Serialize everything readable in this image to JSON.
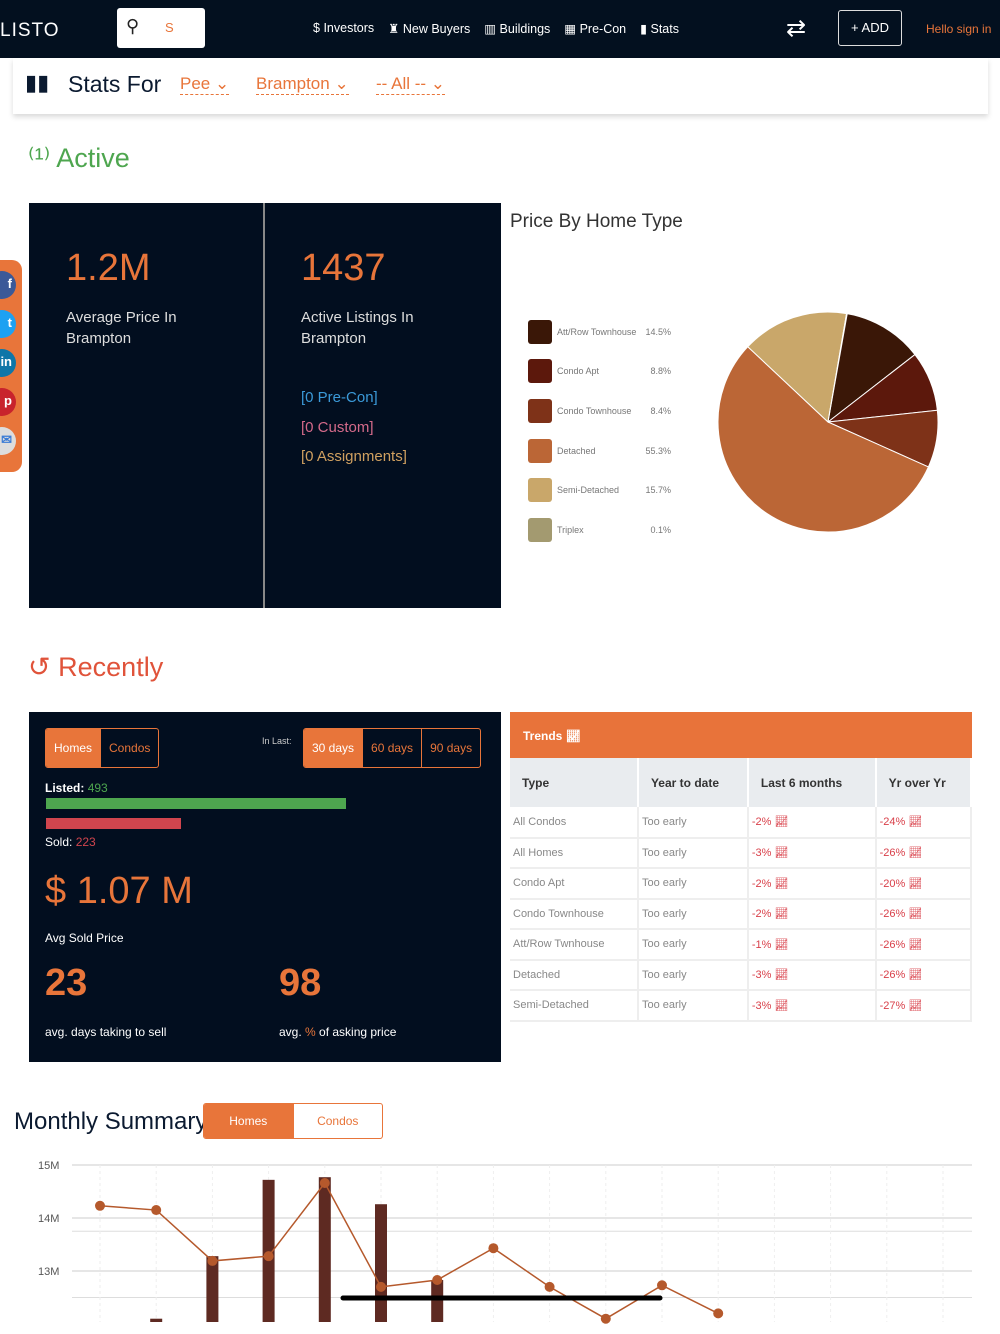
{
  "nav": {
    "logo": "LISTO",
    "search_placeholder": "S",
    "links": [
      {
        "icon": "dollar-icon",
        "glyph": "$",
        "label": "Investors"
      },
      {
        "icon": "person-icon",
        "glyph": "♜",
        "label": "New Buyers"
      },
      {
        "icon": "building-icon",
        "glyph": "▥",
        "label": "Buildings"
      },
      {
        "icon": "city-icon",
        "glyph": "▦",
        "label": "Pre-Con"
      },
      {
        "icon": "stats-icon",
        "glyph": "▮",
        "label": "Stats"
      }
    ],
    "add_label": "+ ADD",
    "signin": "Hello sign in"
  },
  "stats_for": {
    "title": "Stats For",
    "region": "Pee",
    "city": "Brampton",
    "type": "-- All --"
  },
  "active": {
    "heading": "Active",
    "avg_price": "1.2M",
    "avg_price_label": "Average Price In Brampton",
    "listings": "1437",
    "listings_label": "Active Listings In Brampton",
    "precon": "[0 Pre-Con]",
    "custom": "[0 Custom]",
    "assignments": "[0 Assignments]"
  },
  "chart_data": [
    {
      "type": "pie",
      "title": "Price By Home Type",
      "slices": [
        {
          "label": "Att/Row Townhouse",
          "value": 14.5,
          "display": "14.5%",
          "color": "#3a1707"
        },
        {
          "label": "Condo Apt",
          "value": 8.8,
          "display": "8.8%",
          "color": "#5c180c"
        },
        {
          "label": "Condo Townhouse",
          "value": 8.4,
          "display": "8.4%",
          "color": "#7e3218"
        },
        {
          "label": "Detached",
          "value": 55.3,
          "display": "55.3%",
          "color": "#bb6636"
        },
        {
          "label": "Semi-Detached",
          "value": 15.7,
          "display": "15.7%",
          "color": "#c9a76a"
        },
        {
          "label": "Triplex",
          "value": 0.1,
          "display": "0.1%",
          "color": "#a39a70"
        }
      ]
    },
    {
      "type": "bar+line",
      "title": "Monthly Summary",
      "yticks": [
        "15M",
        "14M",
        "13M"
      ],
      "ylim": [
        12,
        15
      ],
      "line": [
        14.23,
        14.15,
        13.19,
        13.28,
        14.66,
        12.7,
        12.83,
        13.43,
        12.7,
        12.1,
        12.73,
        12.2
      ],
      "bars": [
        null,
        12.1,
        13.28,
        14.72,
        14.77,
        14.26,
        12.83,
        null,
        null,
        null,
        null,
        null
      ]
    }
  ],
  "recently": {
    "heading": "Recently",
    "tabs": [
      "Homes",
      "Condos"
    ],
    "in_last": "In Last:",
    "days": [
      "30 days",
      "60 days",
      "90 days"
    ],
    "listed_label": "Listed:",
    "listed": "493",
    "sold_label": "Sold:",
    "sold": "223",
    "listed_fraction": 1.0,
    "sold_fraction": 0.45,
    "avg_sold": "$ 1.07 M",
    "avg_sold_label": "Avg Sold Price",
    "days_to_sell": "23",
    "days_label": "avg. days taking to sell",
    "pct_asking": "98",
    "pct_label_pre": "avg. ",
    "pct_label_sym": "%",
    "pct_label_post": " of asking price"
  },
  "trends": {
    "title": "Trends",
    "headers": [
      "Type",
      "Year to date",
      "Last 6 months",
      "Yr over Yr"
    ],
    "rows": [
      [
        "All Condos",
        "Too early",
        "-2%",
        "-24%"
      ],
      [
        "All Homes",
        "Too early",
        "-3%",
        "-26%"
      ],
      [
        "Condo Apt",
        "Too early",
        "-2%",
        "-20%"
      ],
      [
        "Condo Townhouse",
        "Too early",
        "-2%",
        "-26%"
      ],
      [
        "Att/Row Twnhouse",
        "Too early",
        "-1%",
        "-26%"
      ],
      [
        "Detached",
        "Too early",
        "-3%",
        "-26%"
      ],
      [
        "Semi-Detached",
        "Too early",
        "-3%",
        "-27%"
      ]
    ]
  },
  "monthly": {
    "heading": "Monthly Summary",
    "tabs": [
      "Homes",
      "Condos"
    ]
  },
  "colors": {
    "accent": "#e8753a",
    "dark": "#020e1f",
    "green": "#4ea64f",
    "red": "#d0454e"
  }
}
